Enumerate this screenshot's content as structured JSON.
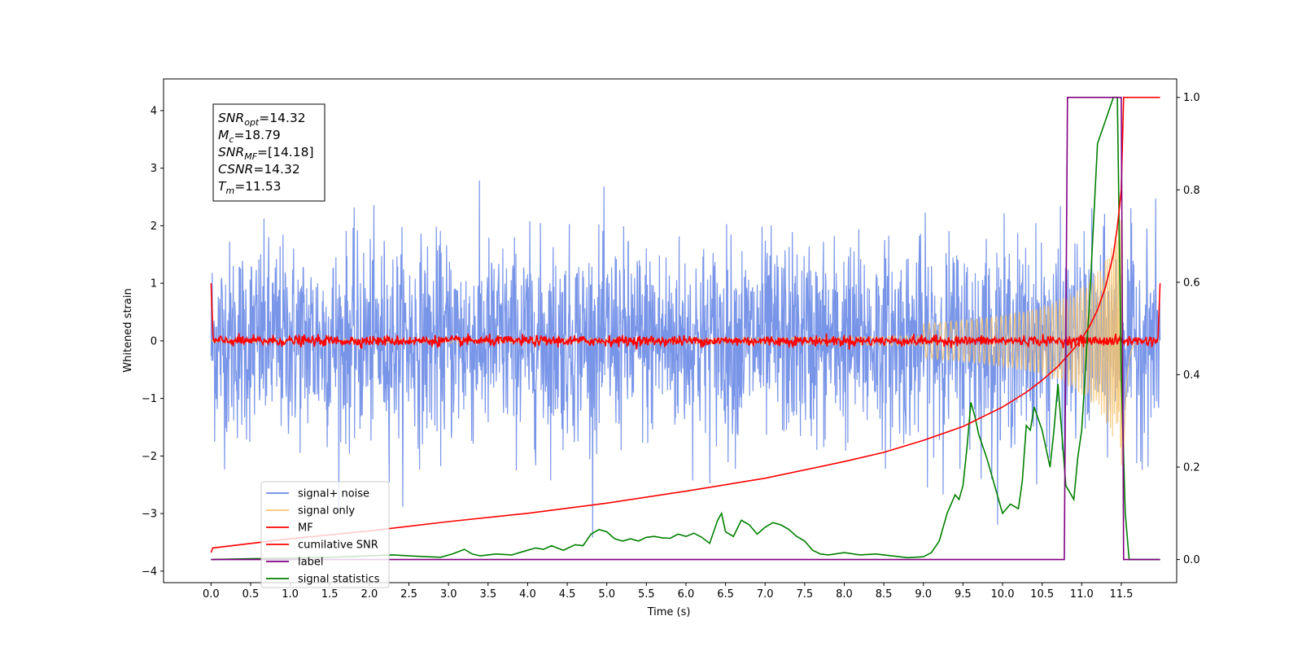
{
  "chart_data": {
    "type": "line",
    "xlabel": "Time (s)",
    "ylabel": "Whitened strain",
    "xlim": [
      -0.6,
      12.2
    ],
    "ylim": [
      -4.2,
      4.55
    ],
    "y2lim": [
      -0.05,
      1.04
    ],
    "x_ticks": [
      0.0,
      0.5,
      1.0,
      1.5,
      2.0,
      2.5,
      3.0,
      3.5,
      4.0,
      4.5,
      5.0,
      5.5,
      6.0,
      6.5,
      7.0,
      7.5,
      8.0,
      8.5,
      9.0,
      9.5,
      10.0,
      10.5,
      11.0,
      11.5
    ],
    "y_ticks": [
      4,
      3,
      2,
      1,
      0,
      -1,
      -2,
      -3,
      -4
    ],
    "y_tick_labels": [
      "4",
      "3",
      "2",
      "1",
      "0",
      "−1",
      "−2",
      "−3",
      "−4"
    ],
    "y2_ticks": [
      1.0,
      0.8,
      0.6,
      0.4,
      0.2,
      0.0
    ],
    "legend_position": "lower-left",
    "grid": false,
    "series": [
      {
        "name": "signal+ noise",
        "axis": "left",
        "color": "#6a89e5",
        "style": "dense noise, amplitude about ±2.6 with spikes to ±3.4",
        "x_range": [
          0.0,
          11.99
        ]
      },
      {
        "name": "signal only",
        "axis": "left",
        "color": "#f4c470",
        "style": "chirp growing from ~0 to about ±2.4 near 11.5 s",
        "x_range": [
          0.0,
          11.99
        ]
      },
      {
        "name": "MF",
        "axis": "left",
        "color": "#ff0000",
        "style": "noise around 0, about ±0.1",
        "x_range": [
          0.0,
          11.99
        ]
      },
      {
        "name": "cumilative SNR",
        "axis": "right",
        "color": "#ff0000",
        "x": [
          0.0,
          0.02,
          1.0,
          2.0,
          3.0,
          4.0,
          5.0,
          6.0,
          7.0,
          8.0,
          8.5,
          9.0,
          9.5,
          10.0,
          10.3,
          10.5,
          10.7,
          10.9,
          11.0,
          11.1,
          11.2,
          11.3,
          11.4,
          11.45,
          11.5,
          11.53,
          11.6,
          11.99
        ],
        "values": [
          0.015,
          0.025,
          0.045,
          0.062,
          0.082,
          0.1,
          0.122,
          0.148,
          0.176,
          0.212,
          0.232,
          0.258,
          0.288,
          0.33,
          0.362,
          0.388,
          0.418,
          0.456,
          0.478,
          0.505,
          0.54,
          0.59,
          0.66,
          0.72,
          0.8,
          1.0,
          1.0,
          1.0
        ]
      },
      {
        "name": "label",
        "axis": "right",
        "color": "#800080",
        "x": [
          0.0,
          10.78,
          10.82,
          11.5,
          11.53,
          11.99
        ],
        "values": [
          0.0,
          0.0,
          1.0,
          1.0,
          0.0,
          0.0
        ]
      },
      {
        "name": "signal statistics",
        "axis": "right",
        "color": "#008000",
        "x": [
          0.0,
          0.5,
          1.0,
          1.5,
          2.0,
          2.3,
          2.6,
          2.9,
          3.05,
          3.2,
          3.3,
          3.4,
          3.6,
          3.8,
          4.0,
          4.1,
          4.2,
          4.3,
          4.45,
          4.6,
          4.7,
          4.8,
          4.9,
          5.0,
          5.1,
          5.2,
          5.3,
          5.4,
          5.5,
          5.6,
          5.7,
          5.8,
          5.9,
          6.0,
          6.1,
          6.2,
          6.3,
          6.4,
          6.45,
          6.5,
          6.6,
          6.7,
          6.8,
          6.9,
          7.0,
          7.1,
          7.2,
          7.3,
          7.4,
          7.5,
          7.6,
          7.7,
          7.8,
          8.0,
          8.2,
          8.4,
          8.6,
          8.8,
          9.0,
          9.1,
          9.2,
          9.3,
          9.4,
          9.45,
          9.5,
          9.55,
          9.6,
          9.65,
          9.7,
          9.8,
          9.9,
          10.0,
          10.1,
          10.2,
          10.25,
          10.3,
          10.35,
          10.4,
          10.5,
          10.6,
          10.65,
          10.7,
          10.8,
          10.9,
          10.95,
          11.0,
          11.1,
          11.2,
          11.3,
          11.4,
          11.45,
          11.5,
          11.55,
          11.6,
          11.99
        ],
        "values": [
          0.0,
          0.002,
          0.003,
          0.005,
          0.008,
          0.01,
          0.007,
          0.005,
          0.012,
          0.022,
          0.012,
          0.008,
          0.012,
          0.01,
          0.02,
          0.025,
          0.022,
          0.03,
          0.02,
          0.032,
          0.03,
          0.055,
          0.065,
          0.06,
          0.045,
          0.04,
          0.045,
          0.04,
          0.048,
          0.05,
          0.047,
          0.046,
          0.055,
          0.05,
          0.057,
          0.048,
          0.035,
          0.085,
          0.1,
          0.06,
          0.05,
          0.085,
          0.075,
          0.055,
          0.07,
          0.08,
          0.075,
          0.065,
          0.05,
          0.04,
          0.02,
          0.012,
          0.01,
          0.015,
          0.01,
          0.012,
          0.008,
          0.004,
          0.006,
          0.015,
          0.04,
          0.1,
          0.14,
          0.13,
          0.16,
          0.24,
          0.34,
          0.31,
          0.27,
          0.22,
          0.16,
          0.1,
          0.12,
          0.11,
          0.17,
          0.29,
          0.28,
          0.33,
          0.28,
          0.2,
          0.28,
          0.38,
          0.16,
          0.13,
          0.22,
          0.28,
          0.56,
          0.9,
          0.95,
          1.0,
          1.0,
          0.4,
          0.1,
          0.0,
          0.0
        ]
      }
    ]
  },
  "annotation": {
    "snr_opt": {
      "base": "SNR",
      "sub": "opt",
      "value": "=14.32"
    },
    "mc": {
      "base": "M",
      "sub": "c",
      "value": "=18.79"
    },
    "snr_mf": {
      "base": "SNR",
      "sub": "MF",
      "value": "=[14.18]"
    },
    "csnr": {
      "base": "CSNR",
      "value": "=14.32"
    },
    "tm": {
      "base": "T",
      "sub": "m",
      "value": "=11.53"
    }
  }
}
